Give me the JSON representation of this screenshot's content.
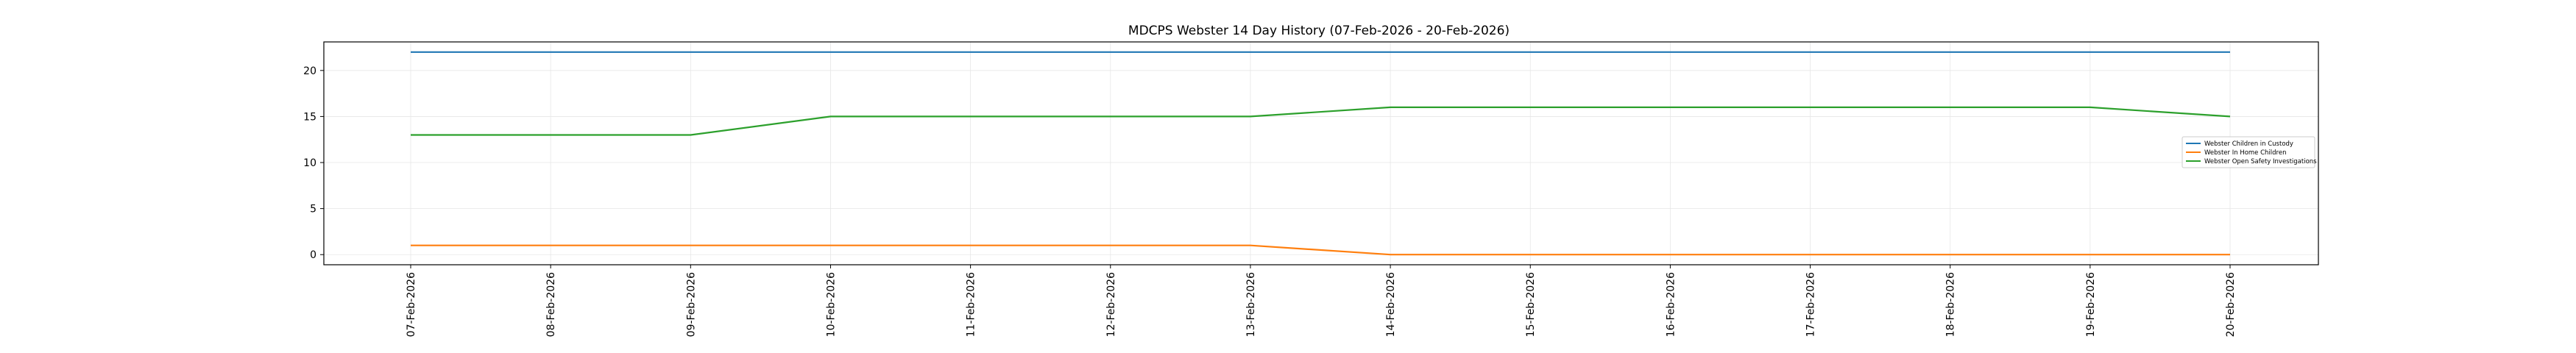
{
  "chart_data": {
    "type": "line",
    "title": "MDCPS Webster 14 Day History (07-Feb-2026 - 20-Feb-2026)",
    "xlabel": "",
    "ylabel": "",
    "categories": [
      "07-Feb-2026",
      "08-Feb-2026",
      "09-Feb-2026",
      "10-Feb-2026",
      "11-Feb-2026",
      "12-Feb-2026",
      "13-Feb-2026",
      "14-Feb-2026",
      "15-Feb-2026",
      "16-Feb-2026",
      "17-Feb-2026",
      "18-Feb-2026",
      "19-Feb-2026",
      "20-Feb-2026"
    ],
    "ylim": [
      -1.1,
      23.1
    ],
    "yticks": [
      0,
      5,
      10,
      15,
      20
    ],
    "grid": true,
    "legend_position": "center-right",
    "series": [
      {
        "name": "Webster Children in Custody",
        "color": "#1f77b4",
        "values": [
          22,
          22,
          22,
          22,
          22,
          22,
          22,
          22,
          22,
          22,
          22,
          22,
          22,
          22
        ]
      },
      {
        "name": "Webster In Home Children",
        "color": "#ff7f0e",
        "values": [
          1,
          1,
          1,
          1,
          1,
          1,
          1,
          0,
          0,
          0,
          0,
          0,
          0,
          0
        ]
      },
      {
        "name": "Webster Open Safety Investigations",
        "color": "#2ca02c",
        "values": [
          13,
          13,
          13,
          15,
          15,
          15,
          15,
          16,
          16,
          16,
          16,
          16,
          16,
          15
        ]
      }
    ]
  }
}
